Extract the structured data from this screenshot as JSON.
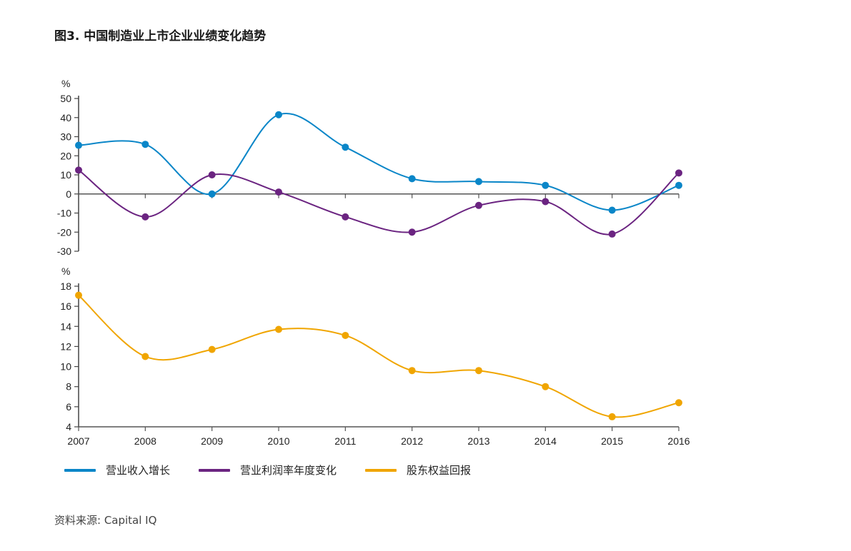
{
  "title": "图3. 中国制造业上市企业业绩变化趋势",
  "source": "资料来源: Capital IQ",
  "chart_data": [
    {
      "type": "line",
      "unit": "%",
      "x": [
        "2007",
        "2008",
        "2009",
        "2010",
        "2011",
        "2012",
        "2013",
        "2014",
        "2015",
        "2016"
      ],
      "ylim": [
        -30,
        50
      ],
      "yticks": [
        50,
        40,
        30,
        20,
        10,
        0,
        -10,
        -20,
        -30
      ],
      "series": [
        {
          "name": "营业收入增长",
          "color": "#0a86c8",
          "values": [
            25.5,
            26,
            0,
            41.5,
            24.5,
            8,
            6.5,
            4.5,
            -8.5,
            4.5
          ]
        },
        {
          "name": "营业利润率年度变化",
          "color": "#6b2481",
          "values": [
            12.5,
            -12,
            10,
            1,
            -12,
            -20,
            -6,
            -4,
            -21,
            11
          ]
        }
      ]
    },
    {
      "type": "line",
      "unit": "%",
      "x": [
        "2007",
        "2008",
        "2009",
        "2010",
        "2011",
        "2012",
        "2013",
        "2014",
        "2015",
        "2016"
      ],
      "ylim": [
        4,
        18
      ],
      "yticks": [
        18,
        16,
        14,
        12,
        10,
        8,
        6,
        4
      ],
      "series": [
        {
          "name": "股东权益回报",
          "color": "#f0a500",
          "values": [
            17.1,
            11,
            11.7,
            13.7,
            13.1,
            9.6,
            9.6,
            8,
            5,
            6.4
          ]
        }
      ]
    }
  ],
  "legend": [
    {
      "label": "营业收入增长",
      "color": "#0a86c8"
    },
    {
      "label": "营业利润率年度变化",
      "color": "#6b2481"
    },
    {
      "label": "股东权益回报",
      "color": "#f0a500"
    }
  ]
}
